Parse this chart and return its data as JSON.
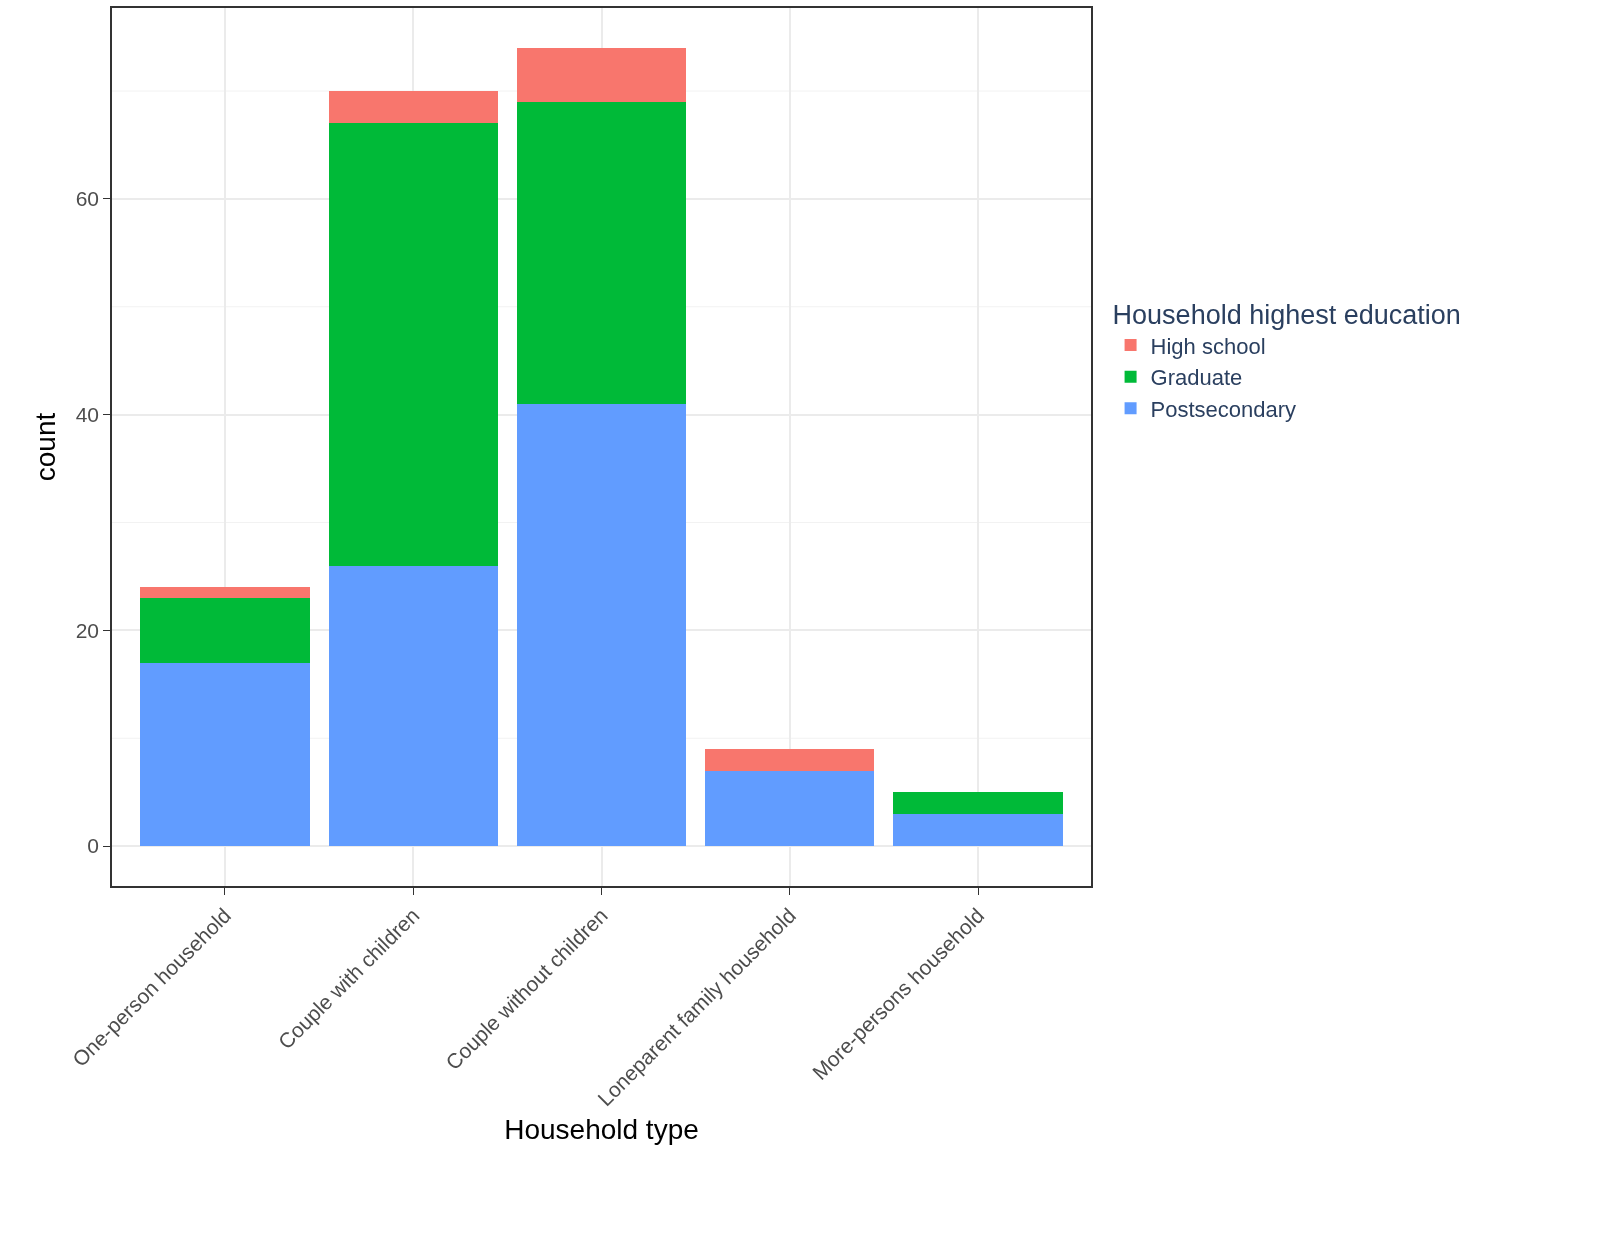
{
  "chart_data": {
    "type": "bar",
    "stacked": true,
    "xlabel": "Household type",
    "ylabel": "count",
    "legend_title": "Household highest education",
    "legend": "right",
    "grid": true,
    "categories": [
      "One-person household",
      "Couple with children",
      "Couple without children",
      "Loneparent family household",
      "More-persons household"
    ],
    "series": [
      {
        "name": "Postsecondary",
        "color": "#619cff",
        "values": [
          17,
          26,
          41,
          7,
          3
        ]
      },
      {
        "name": "Graduate",
        "color": "#00ba38",
        "values": [
          6,
          41,
          28,
          0,
          2
        ]
      },
      {
        "name": "High school",
        "color": "#f8766d",
        "values": [
          1,
          3,
          5,
          2,
          0
        ]
      }
    ],
    "ylim": [
      -3.7,
      77.7
    ],
    "yticks": [
      0,
      20,
      40,
      60
    ]
  }
}
